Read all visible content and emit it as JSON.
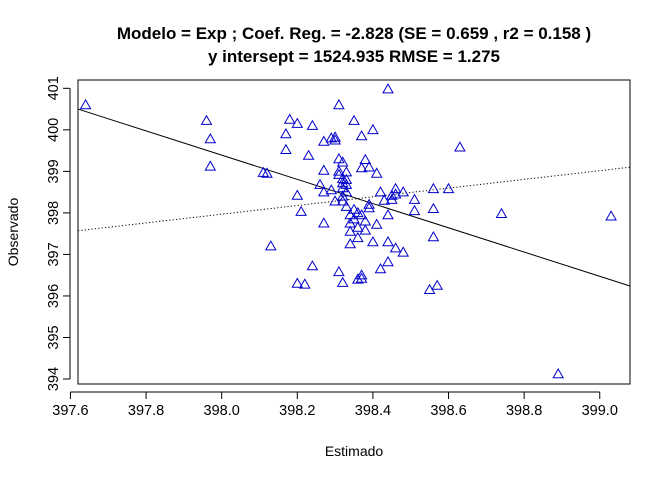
{
  "chart_data": {
    "type": "scatter",
    "title_line1": "Modelo =  Exp ; Coef. Reg. =  -2.828  (SE =  0.659 , r2 =  0.158 )",
    "title_line2": "y intersept =  1524.935 RMSE =  1.275",
    "xlabel": "Estimado",
    "ylabel": "Observado",
    "xlim": [
      397.62,
      399.08
    ],
    "ylim": [
      393.88,
      401.2
    ],
    "xticks": [
      397.6,
      397.8,
      398.0,
      398.2,
      398.4,
      398.6,
      398.8,
      399.0
    ],
    "xtick_labels": [
      "397.6",
      "397.8",
      "398.0",
      "398.2",
      "398.4",
      "398.6",
      "398.8",
      "399.0"
    ],
    "yticks": [
      394,
      395,
      396,
      397,
      398,
      399,
      400,
      401
    ],
    "ytick_labels": [
      "394",
      "395",
      "396",
      "397",
      "398",
      "399",
      "400",
      "401"
    ],
    "grid": false,
    "legend": "none",
    "marker": "triangle-open",
    "marker_color": "#0000cc",
    "points": [
      [
        397.64,
        400.6
      ],
      [
        397.96,
        400.22
      ],
      [
        397.97,
        399.78
      ],
      [
        397.97,
        399.12
      ],
      [
        398.11,
        398.97
      ],
      [
        398.12,
        398.95
      ],
      [
        398.13,
        397.2
      ],
      [
        398.17,
        399.9
      ],
      [
        398.17,
        399.52
      ],
      [
        398.18,
        400.25
      ],
      [
        398.2,
        400.15
      ],
      [
        398.2,
        398.42
      ],
      [
        398.21,
        398.03
      ],
      [
        398.2,
        396.3
      ],
      [
        398.22,
        396.28
      ],
      [
        398.23,
        399.38
      ],
      [
        398.24,
        400.1
      ],
      [
        398.24,
        396.72
      ],
      [
        398.26,
        398.68
      ],
      [
        398.27,
        398.5
      ],
      [
        398.27,
        399.02
      ],
      [
        398.27,
        397.75
      ],
      [
        398.27,
        399.72
      ],
      [
        398.29,
        399.8
      ],
      [
        398.29,
        398.55
      ],
      [
        398.3,
        399.82
      ],
      [
        398.3,
        399.75
      ],
      [
        398.3,
        398.28
      ],
      [
        398.31,
        400.6
      ],
      [
        398.31,
        399.3
      ],
      [
        398.31,
        399.0
      ],
      [
        398.31,
        398.92
      ],
      [
        398.31,
        396.58
      ],
      [
        398.32,
        399.22
      ],
      [
        398.32,
        398.82
      ],
      [
        398.32,
        398.72
      ],
      [
        398.32,
        398.6
      ],
      [
        398.32,
        398.4
      ],
      [
        398.32,
        398.28
      ],
      [
        398.32,
        396.32
      ],
      [
        398.33,
        398.98
      ],
      [
        398.33,
        398.8
      ],
      [
        398.33,
        398.68
      ],
      [
        398.33,
        398.5
      ],
      [
        398.33,
        398.15
      ],
      [
        398.34,
        397.95
      ],
      [
        398.34,
        397.75
      ],
      [
        398.34,
        397.55
      ],
      [
        398.34,
        397.25
      ],
      [
        398.35,
        400.22
      ],
      [
        398.35,
        398.08
      ],
      [
        398.35,
        397.85
      ],
      [
        398.36,
        398.0
      ],
      [
        398.36,
        397.65
      ],
      [
        398.36,
        397.4
      ],
      [
        398.36,
        396.4
      ],
      [
        398.37,
        399.85
      ],
      [
        398.37,
        399.08
      ],
      [
        398.37,
        397.95
      ],
      [
        398.37,
        396.5
      ],
      [
        398.37,
        396.42
      ],
      [
        398.38,
        399.28
      ],
      [
        398.38,
        397.8
      ],
      [
        398.38,
        397.58
      ],
      [
        398.39,
        399.1
      ],
      [
        398.39,
        398.2
      ],
      [
        398.39,
        398.12
      ],
      [
        398.4,
        400.0
      ],
      [
        398.4,
        397.3
      ],
      [
        398.41,
        398.95
      ],
      [
        398.41,
        397.72
      ],
      [
        398.42,
        398.5
      ],
      [
        398.42,
        396.65
      ],
      [
        398.43,
        398.3
      ],
      [
        398.44,
        400.98
      ],
      [
        398.44,
        397.95
      ],
      [
        398.44,
        396.82
      ],
      [
        398.44,
        397.3
      ],
      [
        398.45,
        398.42
      ],
      [
        398.45,
        398.32
      ],
      [
        398.46,
        398.58
      ],
      [
        398.46,
        398.45
      ],
      [
        398.46,
        397.15
      ],
      [
        398.48,
        398.5
      ],
      [
        398.48,
        397.05
      ],
      [
        398.51,
        398.32
      ],
      [
        398.51,
        398.05
      ],
      [
        398.55,
        396.15
      ],
      [
        398.56,
        398.58
      ],
      [
        398.56,
        398.1
      ],
      [
        398.56,
        397.42
      ],
      [
        398.57,
        396.25
      ],
      [
        398.6,
        398.58
      ],
      [
        398.63,
        399.58
      ],
      [
        398.74,
        397.98
      ],
      [
        398.89,
        394.12
      ],
      [
        399.03,
        397.92
      ]
    ],
    "lines": [
      {
        "name": "",
        "style": "solid",
        "x": [
          397.62,
          399.08
        ],
        "y": [
          400.5,
          396.24
        ]
      },
      {
        "name": "",
        "style": "dotted",
        "x": [
          397.62,
          399.08
        ],
        "y": [
          397.57,
          399.1
        ]
      }
    ]
  }
}
